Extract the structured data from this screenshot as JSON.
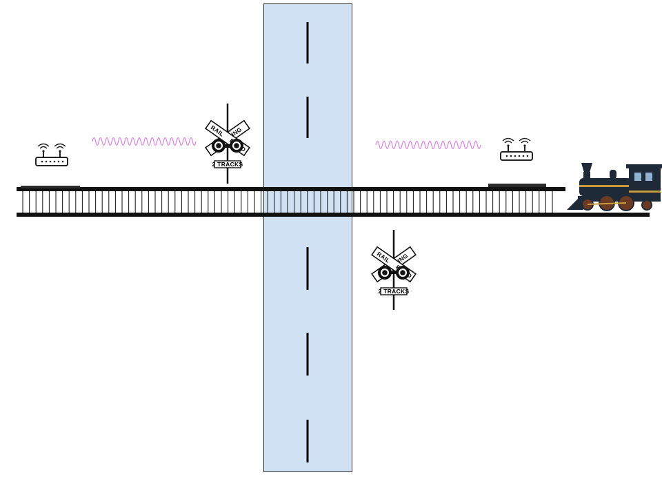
{
  "colors": {
    "road_fill": "#cfe1f3",
    "road_border": "#333333",
    "rail": "#111111",
    "wave": "#e07ae8",
    "locomotive_body": "#1f2a38",
    "locomotive_trim": "#c89a3a",
    "locomotive_wheel": "#6b3a22"
  },
  "icons": {
    "router_left": "wifi-router-icon",
    "router_right": "wifi-router-icon",
    "signal_wave": "signal-wave-icon",
    "crossing_sign": "railroad-crossing-sign-icon",
    "locomotive": "steam-locomotive-icon"
  },
  "crossing_sign": {
    "word_left": "RAIL",
    "word_center": "CROSSING",
    "word_right": "ROAD",
    "plate": "2 TRACKS"
  }
}
